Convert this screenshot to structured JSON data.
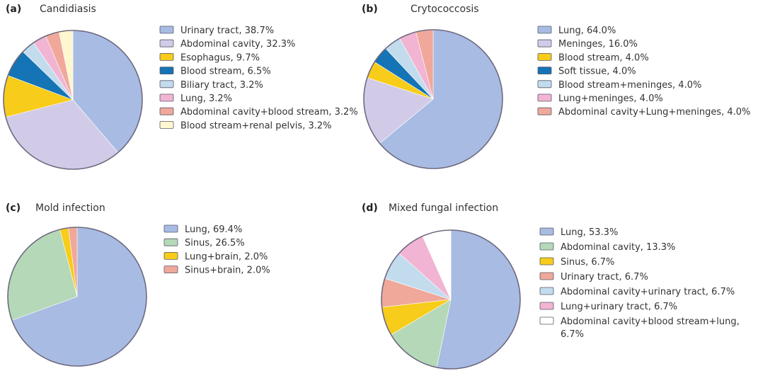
{
  "colors": {
    "blue": "#a8bbe3",
    "lavender": "#d2cbe8",
    "yellow": "#f7cc1a",
    "darkblue": "#1474b5",
    "lightblue": "#c2dcee",
    "pink": "#f2b4d3",
    "salmon": "#f0a89a",
    "cream": "#fff7cf",
    "green": "#b5d9b8",
    "white": "#ffffff"
  },
  "chart_data": [
    {
      "type": "pie",
      "panel": "(a)",
      "title": "Candidiasis",
      "slices": [
        {
          "label": "Urinary tract, 38.7%",
          "value": 38.7,
          "color": "blue"
        },
        {
          "label": "Abdominal cavity, 32.3%",
          "value": 32.3,
          "color": "lavender"
        },
        {
          "label": "Esophagus, 9.7%",
          "value": 9.7,
          "color": "yellow"
        },
        {
          "label": "Blood stream, 6.5%",
          "value": 6.5,
          "color": "darkblue"
        },
        {
          "label": "Biliary tract, 3.2%",
          "value": 3.2,
          "color": "lightblue"
        },
        {
          "label": "Lung, 3.2%",
          "value": 3.2,
          "color": "pink"
        },
        {
          "label": "Abdominal cavity+blood stream, 3.2%",
          "value": 3.2,
          "color": "salmon"
        },
        {
          "label": "Blood stream+renal pelvis, 3.2%",
          "value": 3.2,
          "color": "cream"
        }
      ]
    },
    {
      "type": "pie",
      "panel": "(b)",
      "title": "Crytococcosis",
      "slices": [
        {
          "label": "Lung, 64.0%",
          "value": 64.0,
          "color": "blue"
        },
        {
          "label": "Meninges, 16.0%",
          "value": 16.0,
          "color": "lavender"
        },
        {
          "label": "Blood stream, 4.0%",
          "value": 4.0,
          "color": "yellow"
        },
        {
          "label": "Soft tissue, 4.0%",
          "value": 4.0,
          "color": "darkblue"
        },
        {
          "label": "Blood stream+meninges, 4.0%",
          "value": 4.0,
          "color": "lightblue"
        },
        {
          "label": "Lung+meninges, 4.0%",
          "value": 4.0,
          "color": "pink"
        },
        {
          "label": "Abdominal cavity+Lung+meninges, 4.0%",
          "value": 4.0,
          "color": "salmon"
        }
      ]
    },
    {
      "type": "pie",
      "panel": "(c)",
      "title": "Mold infection",
      "slices": [
        {
          "label": "Lung, 69.4%",
          "value": 69.4,
          "color": "blue"
        },
        {
          "label": "Sinus, 26.5%",
          "value": 26.5,
          "color": "green"
        },
        {
          "label": "Lung+brain, 2.0%",
          "value": 2.0,
          "color": "yellow"
        },
        {
          "label": "Sinus+brain, 2.0%",
          "value": 2.0,
          "color": "salmon"
        }
      ]
    },
    {
      "type": "pie",
      "panel": "(d)",
      "title": "Mixed fungal infection",
      "slices": [
        {
          "label": "Lung, 53.3%",
          "value": 53.3,
          "color": "blue"
        },
        {
          "label": "Abdominal cavity, 13.3%",
          "value": 13.3,
          "color": "green"
        },
        {
          "label": "Sinus, 6.7%",
          "value": 6.7,
          "color": "yellow"
        },
        {
          "label": "Urinary tract, 6.7%",
          "value": 6.7,
          "color": "salmon"
        },
        {
          "label": "Abdominal cavity+urinary tract, 6.7%",
          "value": 6.7,
          "color": "lightblue"
        },
        {
          "label": "Lung+urinary tract, 6.7%",
          "value": 6.7,
          "color": "pink"
        },
        {
          "label": "Abdominal cavity+blood stream+lung, 6.7%",
          "value": 6.7,
          "color": "white"
        }
      ]
    }
  ]
}
